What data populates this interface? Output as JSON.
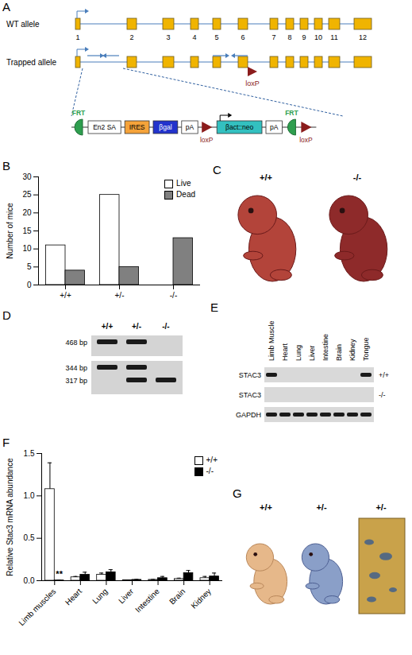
{
  "panel_letters": [
    "A",
    "B",
    "C",
    "D",
    "E",
    "F",
    "G"
  ],
  "diagram": {
    "wt_label": "WT allele",
    "trapped_label": "Trapped allele",
    "exons": [
      "1",
      "2",
      "3",
      "4",
      "5",
      "6",
      "7",
      "8",
      "9",
      "10",
      "11",
      "12"
    ],
    "exon_color": "#f0b400",
    "insert_label": "loxP",
    "cassette": [
      {
        "label": "FRT",
        "color": "#2e9e4f"
      },
      {
        "label": "En2 SA",
        "color": "#ffffff"
      },
      {
        "label": "IRES",
        "color": "#f5a33a"
      },
      {
        "label": "βgal",
        "color": "#2233cc"
      },
      {
        "label": "pA",
        "color": "#ffffff"
      },
      {
        "label": "loxP",
        "color": "#8b1c1c"
      },
      {
        "label": "βact::neo",
        "color": "#33c0c0"
      },
      {
        "label": "pA",
        "color": "#ffffff"
      },
      {
        "label": "FRT",
        "color": "#2e9e4f"
      },
      {
        "label": "loxP",
        "color": "#8b1c1c"
      }
    ]
  },
  "chart_data": [
    {
      "type": "bar",
      "y_label": "Number of mice",
      "categories": [
        "+/+",
        "+/-",
        "-/-"
      ],
      "series": [
        {
          "name": "Live",
          "color": "#ffffff",
          "values": [
            11,
            25,
            0
          ]
        },
        {
          "name": "Dead",
          "color": "#808080",
          "values": [
            4,
            5,
            13
          ]
        }
      ],
      "ylim": [
        0,
        30
      ],
      "yticks": [
        0,
        5,
        10,
        15,
        20,
        25,
        30
      ],
      "legend": "top-right"
    },
    {
      "type": "bar",
      "y_label": "Relative Stac3 mRNA abundance",
      "categories": [
        "Limb muscles",
        "Heart",
        "Lung",
        "Liver",
        "Intestine",
        "Brain",
        "Kidney"
      ],
      "series": [
        {
          "name": "+/+",
          "color": "#ffffff",
          "values": [
            1.08,
            0.04,
            0.07,
            0.005,
            0.01,
            0.02,
            0.03
          ],
          "errors": [
            0.31,
            0.01,
            0.02,
            0.003,
            0.005,
            0.01,
            0.02
          ]
        },
        {
          "name": "-/-",
          "color": "#000000",
          "values": [
            0.003,
            0.07,
            0.1,
            0.01,
            0.03,
            0.09,
            0.05
          ],
          "errors": [
            0.002,
            0.03,
            0.03,
            0.005,
            0.02,
            0.03,
            0.04
          ]
        }
      ],
      "ylim": [
        0,
        1.5
      ],
      "yticks": [
        {
          "value": 0,
          "label": "0.0"
        },
        {
          "value": 0.5,
          "label": "0.5"
        },
        {
          "value": 1,
          "label": "1.0"
        },
        {
          "value": 1.5,
          "label": "1.5"
        }
      ],
      "legend": "top-right",
      "annotations": [
        {
          "category": "Limb muscles",
          "series": "-/-",
          "text": "**"
        }
      ]
    }
  ],
  "photos_C": {
    "labels": [
      "+/+",
      "-/-"
    ]
  },
  "gel_D": {
    "lanes": [
      "+/+",
      "+/-",
      "-/-"
    ],
    "gels": [
      {
        "bands": [
          {
            "label": "468 bp",
            "present": [
              true,
              true,
              false
            ]
          }
        ]
      },
      {
        "bands": [
          {
            "label": "344 bp",
            "present": [
              true,
              true,
              false
            ]
          },
          {
            "label": "317 bp",
            "present": [
              false,
              true,
              true
            ]
          }
        ]
      }
    ]
  },
  "gel_E": {
    "lanes": [
      "Limb Muscle",
      "Heart",
      "Lung",
      "Liver",
      "Intestine",
      "Brain",
      "Kidney",
      "Tongue"
    ],
    "rows": [
      {
        "label": "STAC3",
        "genotype": "+/+",
        "present": [
          true,
          false,
          false,
          false,
          false,
          false,
          false,
          true
        ]
      },
      {
        "label": "STAC3",
        "genotype": "-/-",
        "present": [
          false,
          false,
          false,
          false,
          false,
          false,
          false,
          false
        ]
      },
      {
        "label": "GAPDH",
        "genotype": null,
        "present": [
          true,
          true,
          true,
          true,
          true,
          true,
          true,
          true
        ]
      }
    ]
  },
  "photos_G": {
    "labels": [
      "+/+",
      "+/-",
      "+/-"
    ]
  }
}
